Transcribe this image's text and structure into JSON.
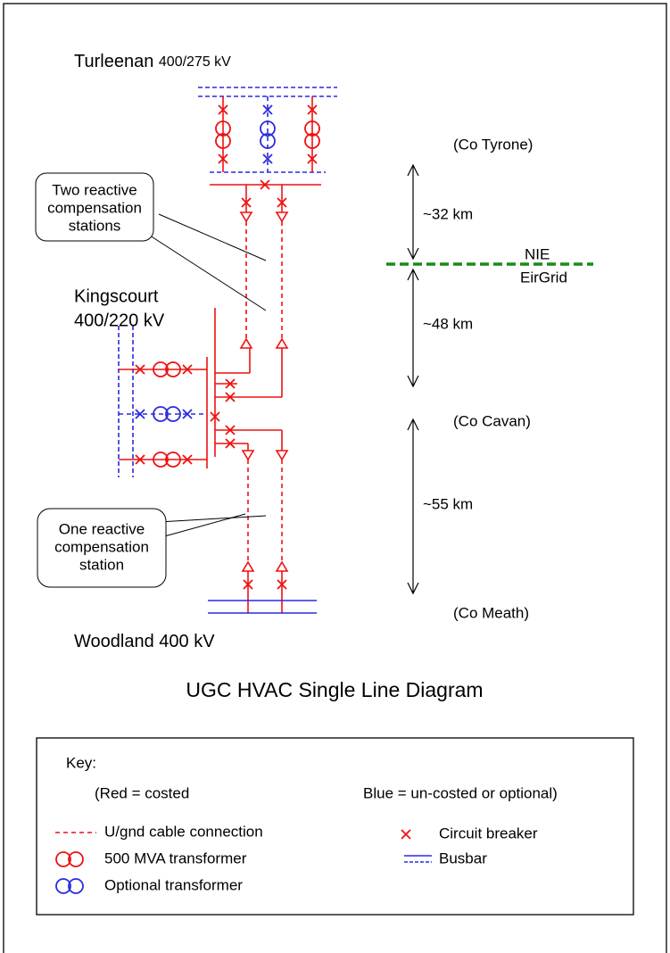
{
  "stations": [
    {
      "name": "Turleenan",
      "voltage": "400/275 kV"
    },
    {
      "name": "Kingscourt",
      "voltage": "400/220 kV"
    },
    {
      "name": "Woodland",
      "voltage": "400 kV"
    }
  ],
  "callouts": [
    {
      "lines": [
        "Two reactive",
        "compensation",
        "stations"
      ]
    },
    {
      "lines": [
        "One reactive",
        "compensation",
        "station"
      ]
    }
  ],
  "regions": [
    "(Co Tyrone)",
    "(Co Cavan)",
    "(Co Meath)"
  ],
  "distances": [
    "~32 km",
    "~48 km",
    "~55 km"
  ],
  "border": {
    "north": "NIE",
    "south": "EirGrid"
  },
  "title": "UGC HVAC Single Line Diagram",
  "key": {
    "heading": "Key:",
    "red_note": "(Red = costed",
    "blue_note": "Blue = un-costed or optional)",
    "items": [
      "U/gnd cable connection",
      "500 MVA transformer",
      "Optional transformer",
      "Circuit breaker",
      "Busbar"
    ]
  }
}
